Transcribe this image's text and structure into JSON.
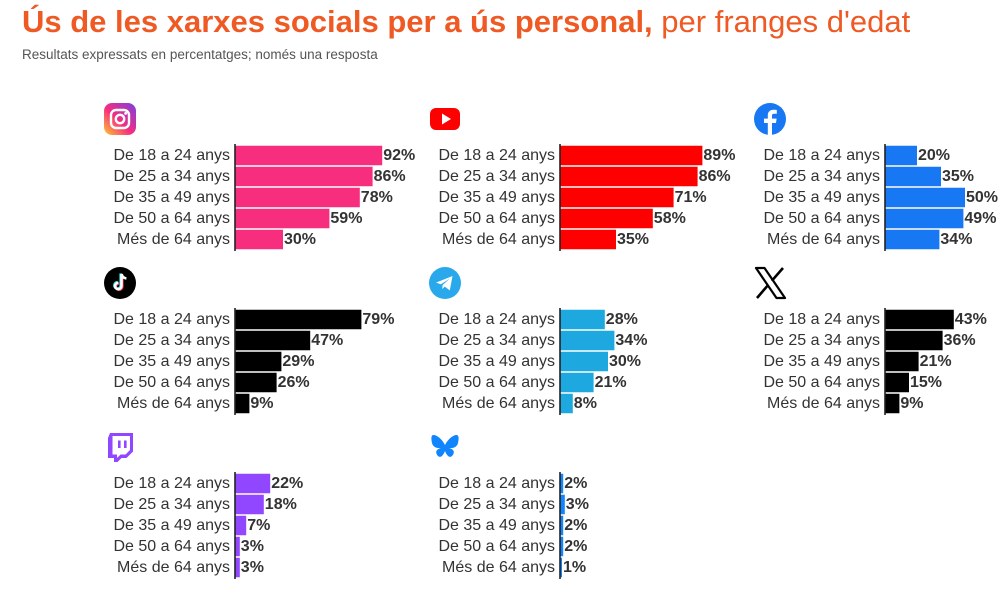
{
  "header": {
    "title_bold": "Ús de les xarxes socials per a ús personal,",
    "title_light": "per franges d'edat",
    "subtitle": "Resultats expressats en percentatges; només una resposta"
  },
  "chart_data": [
    {
      "type": "bar",
      "orientation": "horizontal",
      "platform": "Instagram",
      "logo_icon": "instagram-icon",
      "color": "#f72d7d",
      "categories": [
        "De 18 a 24 anys",
        "De 25 a 34 anys",
        "De 35 a 49 anys",
        "De 50 a 64 anys",
        "Més de 64 anys"
      ],
      "values": [
        92,
        86,
        78,
        59,
        30
      ],
      "value_suffix": "%",
      "xlim": [
        0,
        100
      ]
    },
    {
      "type": "bar",
      "orientation": "horizontal",
      "platform": "YouTube",
      "logo_icon": "youtube-icon",
      "color": "#ff0000",
      "categories": [
        "De 18 a 24 anys",
        "De 25 a 34 anys",
        "De 35 a 49 anys",
        "De 50 a 64 anys",
        "Més de 64 anys"
      ],
      "values": [
        89,
        86,
        71,
        58,
        35
      ],
      "value_suffix": "%",
      "xlim": [
        0,
        100
      ]
    },
    {
      "type": "bar",
      "orientation": "horizontal",
      "platform": "Facebook",
      "logo_icon": "facebook-icon",
      "color": "#1877f2",
      "categories": [
        "De 18 a 24 anys",
        "De 25 a 34 anys",
        "De 35 a 49 anys",
        "De 50 a 64 anys",
        "Més de 64 anys"
      ],
      "values": [
        20,
        35,
        50,
        49,
        34
      ],
      "value_suffix": "%",
      "xlim": [
        0,
        100
      ]
    },
    {
      "type": "bar",
      "orientation": "horizontal",
      "platform": "TikTok",
      "logo_icon": "tiktok-icon",
      "color": "#000000",
      "categories": [
        "De 18 a 24 anys",
        "De 25 a 34 anys",
        "De 35 a 49 anys",
        "De 50 a 64 anys",
        "Més de 64 anys"
      ],
      "values": [
        79,
        47,
        29,
        26,
        9
      ],
      "value_suffix": "%",
      "xlim": [
        0,
        100
      ]
    },
    {
      "type": "bar",
      "orientation": "horizontal",
      "platform": "Telegram",
      "logo_icon": "telegram-icon",
      "color": "#1ea8e0",
      "categories": [
        "De 18 a 24 anys",
        "De 25 a 34 anys",
        "De 35 a 49 anys",
        "De 50 a 64 anys",
        "Més de 64 anys"
      ],
      "values": [
        28,
        34,
        30,
        21,
        8
      ],
      "value_suffix": "%",
      "xlim": [
        0,
        100
      ]
    },
    {
      "type": "bar",
      "orientation": "horizontal",
      "platform": "X",
      "logo_icon": "x-icon",
      "color": "#000000",
      "categories": [
        "De 18 a 24 anys",
        "De 25 a 34 anys",
        "De 35 a 49 anys",
        "De 50 a 64 anys",
        "Més de 64 anys"
      ],
      "values": [
        43,
        36,
        21,
        15,
        9
      ],
      "value_suffix": "%",
      "xlim": [
        0,
        100
      ]
    },
    {
      "type": "bar",
      "orientation": "horizontal",
      "platform": "Twitch",
      "logo_icon": "twitch-icon",
      "color": "#9146ff",
      "categories": [
        "De 18 a 24 anys",
        "De 25 a 34 anys",
        "De 35 a 49 anys",
        "De 50 a 64 anys",
        "Més de 64 anys"
      ],
      "values": [
        22,
        18,
        7,
        3,
        3
      ],
      "value_suffix": "%",
      "xlim": [
        0,
        100
      ]
    },
    {
      "type": "bar",
      "orientation": "horizontal",
      "platform": "Bluesky",
      "logo_icon": "bluesky-icon",
      "color": "#1185fe",
      "categories": [
        "De 18 a 24 anys",
        "De 25 a 34 anys",
        "De 35 a 49 anys",
        "De 50 a 64 anys",
        "Més de 64 anys"
      ],
      "values": [
        2,
        3,
        2,
        2,
        1
      ],
      "value_suffix": "%",
      "xlim": [
        0,
        100
      ]
    }
  ]
}
